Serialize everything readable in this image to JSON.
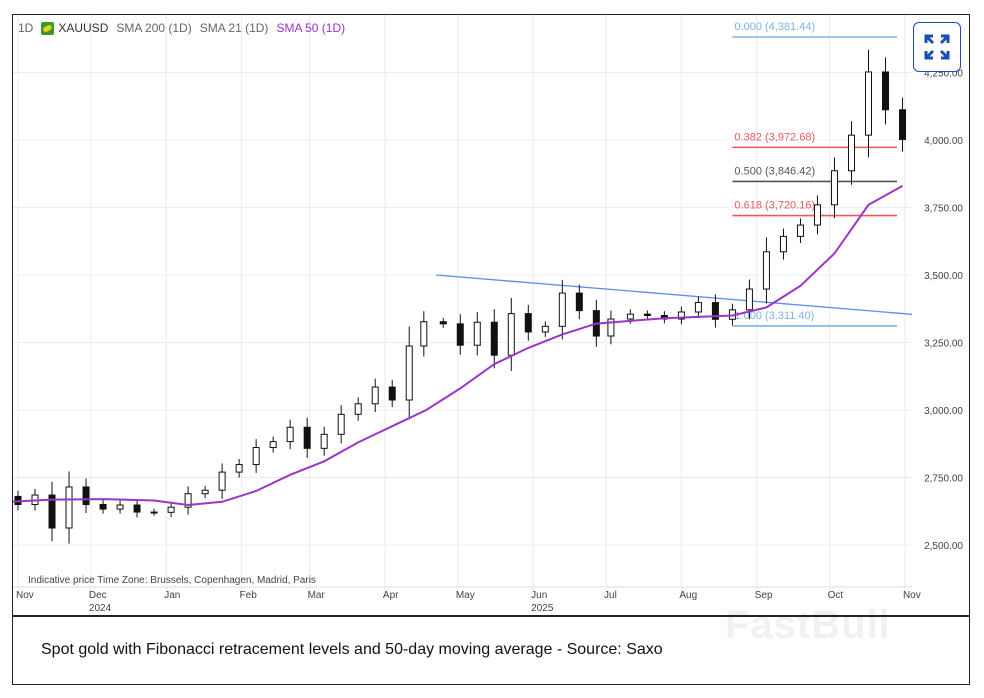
{
  "legend": {
    "interval": "1D",
    "symbol": "XAUUSD",
    "indicators": [
      "SMA 200 (1D)",
      "SMA 21 (1D)",
      "SMA 50 (1D)"
    ],
    "sma50_color": "#9b35c9"
  },
  "expand_button": {
    "icon": "expand-arrows-icon",
    "color": "#1a4fb0"
  },
  "caption": "Spot gold with Fibonacci retracement levels and 50-day moving average - Source: Saxo",
  "watermark": "FastBull",
  "chart_data": {
    "type": "candlestick",
    "note": "Indicative price    Time Zone: Brussels, Copenhagen, Madrid, Paris",
    "ylim": [
      2380,
      4420
    ],
    "yticks": [
      "2,500.00",
      "2,750.00",
      "3,000.00",
      "3,250.00",
      "3,500.00",
      "3,750.00",
      "4,000.00",
      "4,250.00"
    ],
    "ytick_values": [
      2500,
      2750,
      3000,
      3250,
      3500,
      3750,
      4000,
      4250
    ],
    "xticks": [
      "Nov",
      "Dec",
      "Jan",
      "Feb",
      "Mar",
      "Apr",
      "May",
      "Jun",
      "Jul",
      "Aug",
      "Sep",
      "Oct",
      "Nov"
    ],
    "xtick_dates": [
      "2024-11-01",
      "2024-12-01",
      "2025-01-01",
      "2025-02-01",
      "2025-03-01",
      "2025-04-01",
      "2025-05-01",
      "2025-06-01",
      "2025-07-01",
      "2025-08-01",
      "2025-09-01",
      "2025-10-01",
      "2025-11-01"
    ],
    "years": [
      {
        "label": "2024",
        "date": "2024-12-01"
      },
      {
        "label": "2025",
        "date": "2025-06-01"
      }
    ],
    "grid": true,
    "price": {
      "dates": [
        "2024-10-28",
        "2024-11-01",
        "2024-11-08",
        "2024-11-15",
        "2024-11-22",
        "2024-11-29",
        "2024-12-06",
        "2024-12-13",
        "2024-12-20",
        "2024-12-27",
        "2025-01-03",
        "2025-01-10",
        "2025-01-17",
        "2025-01-24",
        "2025-01-31",
        "2025-02-07",
        "2025-02-14",
        "2025-02-21",
        "2025-02-28",
        "2025-03-07",
        "2025-03-14",
        "2025-03-21",
        "2025-03-28",
        "2025-04-04",
        "2025-04-11",
        "2025-04-17",
        "2025-04-25",
        "2025-05-02",
        "2025-05-09",
        "2025-05-16",
        "2025-05-23",
        "2025-05-30",
        "2025-06-06",
        "2025-06-13",
        "2025-06-20",
        "2025-06-27",
        "2025-07-03",
        "2025-07-11",
        "2025-07-18",
        "2025-07-25",
        "2025-08-01",
        "2025-08-08",
        "2025-08-15",
        "2025-08-22",
        "2025-08-29",
        "2025-09-05",
        "2025-09-12",
        "2025-09-19",
        "2025-09-26",
        "2025-10-03",
        "2025-10-10",
        "2025-10-17",
        "2025-10-24",
        "2025-10-31"
      ],
      "close": [
        2680,
        2650,
        2685,
        2563,
        2715,
        2650,
        2633,
        2648,
        2622,
        2621,
        2640,
        2690,
        2703,
        2770,
        2798,
        2861,
        2883,
        2936,
        2858,
        2910,
        2984,
        3023,
        3085,
        3037,
        3237,
        3327,
        3319,
        3240,
        3325,
        3203,
        3357,
        3289,
        3310,
        3433,
        3368,
        3274,
        3337,
        3355,
        3350,
        3337,
        3363,
        3398,
        3336,
        3371,
        3448,
        3586,
        3643,
        3685,
        3760,
        3886,
        4018,
        4252,
        4112,
        4002
      ]
    },
    "series": [
      {
        "name": "SMA 50 (1D)",
        "color": "#9b35c9",
        "dates": [
          "2024-10-28",
          "2024-11-15",
          "2024-12-06",
          "2024-12-27",
          "2025-01-10",
          "2025-01-24",
          "2025-02-07",
          "2025-02-21",
          "2025-03-07",
          "2025-03-21",
          "2025-04-04",
          "2025-04-18",
          "2025-05-02",
          "2025-05-16",
          "2025-05-30",
          "2025-06-13",
          "2025-06-27",
          "2025-07-11",
          "2025-07-25",
          "2025-08-08",
          "2025-08-22",
          "2025-09-05",
          "2025-09-19",
          "2025-10-03",
          "2025-10-17",
          "2025-10-31"
        ],
        "values": [
          2660,
          2668,
          2670,
          2665,
          2648,
          2660,
          2700,
          2760,
          2810,
          2880,
          2940,
          3000,
          3080,
          3170,
          3230,
          3280,
          3320,
          3330,
          3340,
          3345,
          3350,
          3380,
          3460,
          3580,
          3760,
          3830
        ]
      }
    ],
    "trendline": {
      "color": "#5b8def",
      "points": [
        {
          "date": "2025-04-22",
          "value": 3500
        },
        {
          "date": "2025-11-07",
          "value": 3352
        }
      ]
    },
    "fibonacci": [
      {
        "label": "0.000 (4,381.44)",
        "value": 4381.44,
        "color": "#7fb2e5"
      },
      {
        "label": "0.382 (3,972.68)",
        "value": 3972.68,
        "color": "#e85a5a"
      },
      {
        "label": "0.500 (3,846.42)",
        "value": 3846.42,
        "color": "#555555"
      },
      {
        "label": "0.618 (3,720.16)",
        "value": 3720.16,
        "color": "#e85a5a"
      },
      {
        "label": "1.000 (3,311.40)",
        "value": 3311.4,
        "color": "#7fb2e5"
      }
    ],
    "fib_start_date": "2025-08-22"
  }
}
